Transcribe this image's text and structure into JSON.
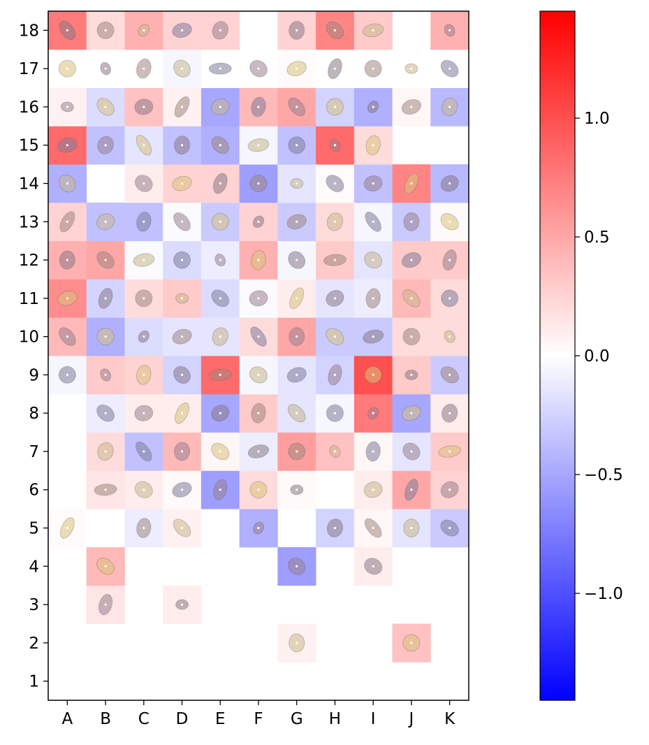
{
  "chart_data": {
    "type": "heatmap",
    "columns": [
      "A",
      "B",
      "C",
      "D",
      "E",
      "F",
      "G",
      "H",
      "I",
      "J",
      "K"
    ],
    "rows": [
      "1",
      "2",
      "3",
      "4",
      "5",
      "6",
      "7",
      "8",
      "9",
      "10",
      "11",
      "12",
      "13",
      "14",
      "15",
      "16",
      "17",
      "18"
    ],
    "values": {
      "18": [
        0.75,
        0.2,
        0.45,
        0.25,
        0.25,
        null,
        0.25,
        0.7,
        0.3,
        null,
        0.45
      ],
      "17": [
        0,
        0,
        0,
        -0.05,
        0,
        0,
        0.02,
        0,
        0,
        0,
        0
      ],
      "16": [
        0.08,
        -0.2,
        0.35,
        0.08,
        -0.5,
        0.4,
        0.5,
        -0.25,
        -0.45,
        0.05,
        -0.4
      ],
      "15": [
        0.85,
        -0.35,
        -0.15,
        -0.35,
        -0.45,
        -0.05,
        -0.35,
        0.85,
        0.2,
        null,
        null
      ],
      "14": [
        -0.45,
        null,
        0.1,
        0.25,
        0.25,
        -0.55,
        -0.15,
        0.02,
        -0.35,
        0.7,
        -0.4
      ],
      "13": [
        0.25,
        -0.35,
        -0.35,
        -0.03,
        -0.3,
        0.25,
        -0.3,
        0.2,
        -0.05,
        -0.3,
        0.03
      ],
      "12": [
        0.45,
        0.5,
        -0.03,
        -0.2,
        -0.1,
        0.45,
        -0.05,
        0.3,
        -0.15,
        0.3,
        0.3
      ],
      "11": [
        0.65,
        -0.25,
        0.2,
        0.3,
        -0.2,
        -0.02,
        0.1,
        -0.15,
        -0.1,
        0.4,
        0.2
      ],
      "10": [
        0.4,
        -0.45,
        -0.2,
        -0.15,
        -0.15,
        0.2,
        0.5,
        -0.3,
        -0.3,
        0.2,
        0.2
      ],
      "9": [
        -0.05,
        0.3,
        0.25,
        -0.25,
        0.85,
        -0.05,
        -0.15,
        -0.25,
        1.0,
        0.3,
        -0.3
      ],
      "8": [
        null,
        -0.1,
        0.1,
        0.1,
        -0.5,
        0.3,
        -0.15,
        -0.05,
        0.75,
        -0.5,
        0.1
      ],
      "7": [
        null,
        0.2,
        -0.35,
        0.4,
        0.05,
        -0.1,
        0.55,
        0.35,
        0.05,
        -0.15,
        0.3
      ],
      "6": [
        null,
        0.15,
        0.1,
        0.03,
        -0.55,
        0.2,
        0.03,
        null,
        0.1,
        0.5,
        0.25
      ],
      "5": [
        0.02,
        null,
        -0.1,
        0.08,
        null,
        -0.45,
        null,
        -0.25,
        0.05,
        -0.15,
        -0.3
      ],
      "4": [
        null,
        0.4,
        null,
        null,
        null,
        null,
        -0.55,
        null,
        0.1,
        null,
        null
      ],
      "3": [
        null,
        0.15,
        null,
        0.1,
        null,
        null,
        null,
        null,
        null,
        null,
        null
      ],
      "2": [
        null,
        null,
        null,
        null,
        null,
        null,
        0.08,
        null,
        null,
        0.35,
        null
      ],
      "1": [
        null,
        null,
        null,
        null,
        null,
        null,
        null,
        null,
        null,
        null,
        null
      ]
    },
    "colormap": "bwr",
    "vmin": -1.45,
    "vmax": 1.45,
    "colorbar_ticks": [
      1.0,
      0.5,
      0.0,
      -0.5,
      -1.0
    ],
    "colorbar_tick_labels": [
      "1.0",
      "0.5",
      "0.0",
      "−0.5",
      "−1.0"
    ],
    "grid": false
  }
}
